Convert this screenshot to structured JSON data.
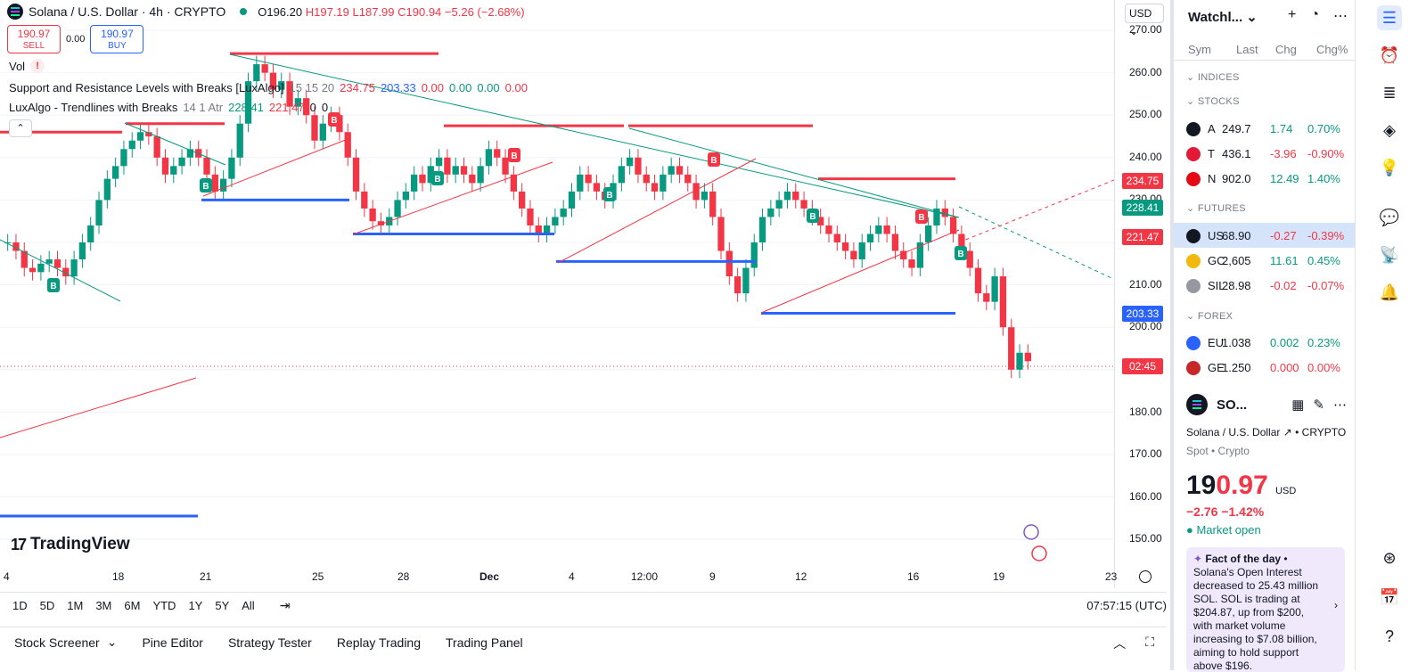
{
  "header": {
    "symbol": "Solana / U.S. Dollar · 4h · CRYPTO",
    "open": "O196.20",
    "high": "H197.19",
    "low": "L187.99",
    "close": "C190.94",
    "change": "−5.26 (−2.68%)"
  },
  "trade": {
    "sell_price": "190.97",
    "sell_label": "SELL",
    "spread": "0.00",
    "buy_price": "190.97",
    "buy_label": "BUY"
  },
  "indicators": {
    "vol": "Vol",
    "sr_name": "Support and Resistance Levels with Breaks [LuxAlgo]",
    "sr_params": "15 15 20",
    "sr_v1": "234.75",
    "sr_v2": "203.33",
    "sr_v3": "0.00",
    "sr_v4": "0.00",
    "sr_v5": "0.00",
    "sr_v6": "0.00",
    "tl_name": "LuxAlgo - Trendlines with Breaks",
    "tl_params": "14 1 Atr",
    "tl_v1": "228.41",
    "tl_v2": "221.47",
    "tl_v3": "0",
    "tl_v4": "0"
  },
  "price_scale": {
    "currency": "USD",
    "ticks": [
      "270.00",
      "260.00",
      "250.00",
      "240.00",
      "230.00",
      "220.00",
      "210.00",
      "200.00",
      "190.00",
      "180.00",
      "170.00",
      "160.00",
      "150.00"
    ],
    "tags": [
      {
        "value": "234.75",
        "color": "#f23645"
      },
      {
        "value": "228.41",
        "color": "#089981"
      },
      {
        "value": "221.47",
        "color": "#f23645"
      },
      {
        "value": "203.33",
        "color": "#2962ff"
      },
      {
        "value": "02:45",
        "color": "#f23645"
      }
    ]
  },
  "time_axis": [
    "4",
    "18",
    "21",
    "25",
    "28",
    "Dec",
    "4",
    "12:00",
    "9",
    "12",
    "16",
    "19",
    "23"
  ],
  "logo": "TradingView",
  "ranges": [
    "1D",
    "5D",
    "1M",
    "3M",
    "6M",
    "YTD",
    "1Y",
    "5Y",
    "All"
  ],
  "clock": "07:57:15 (UTC)",
  "footer_tabs": [
    "Stock Screener",
    "Pine Editor",
    "Strategy Tester",
    "Replay Trading",
    "Trading Panel"
  ],
  "watchlist": {
    "title": "Watchl...",
    "cols": {
      "sym": "Sym",
      "last": "Last",
      "chg": "Chg",
      "chgp": "Chg%"
    },
    "sections": [
      "INDICES",
      "STOCKS",
      "FUTURES",
      "FOREX"
    ],
    "rows": [
      {
        "sym": "A",
        "last": "249.7",
        "chg": "1.74",
        "chgp": "0.70%",
        "dir": "up",
        "logo": "#131722"
      },
      {
        "sym": "T",
        "last": "436.1",
        "chg": "-3.96",
        "chgp": "-0.90%",
        "dir": "dn",
        "logo": "#e31937"
      },
      {
        "sym": "N",
        "last": "902.0",
        "chg": "12.49",
        "chgp": "1.40%",
        "dir": "up",
        "logo": "#e50914"
      },
      {
        "sym": "US",
        "last": "68.90",
        "chg": "-0.27",
        "chgp": "-0.39%",
        "dir": "dn",
        "logo": "#131722"
      },
      {
        "sym": "GC",
        "last": "2,605",
        "chg": "11.61",
        "chgp": "0.45%",
        "dir": "up",
        "logo": "#f0b90b"
      },
      {
        "sym": "SIL",
        "last": "28.98",
        "chg": "-0.02",
        "chgp": "-0.07%",
        "dir": "dn",
        "logo": "#9598a1"
      },
      {
        "sym": "EU",
        "last": "1.038",
        "chg": "0.002",
        "chgp": "0.23%",
        "dir": "up",
        "logo": "#2962ff"
      },
      {
        "sym": "GE",
        "last": "1.250",
        "chg": "0.000",
        "chgp": "0.00%",
        "dir": "dn",
        "logo": "#c62828"
      }
    ]
  },
  "details": {
    "short": "SO...",
    "name": "Solana / U.S. Dollar",
    "exchange": "CRYPTO",
    "type": "Spot • Crypto",
    "price_main": "19",
    "price_red": "0.97",
    "currency": "USD",
    "change": "−2.76  −1.42%",
    "market": "● Market open",
    "fact_title": "Fact of the day",
    "fact_text": "Solana's Open Interest decreased to 25.43 million SOL. SOL is trading at $204.87, up from $200, with market volume increasing to $7.08 billion, aiming to hold support above $196."
  },
  "colors": {
    "up": "#089981",
    "down": "#f23645",
    "accent": "#2962ff"
  },
  "chart_data": {
    "type": "candlestick",
    "title": "Solana / U.S. Dollar · 4h · CRYPTO",
    "ylim": [
      145,
      275
    ],
    "support_levels": [
      221.47,
      203.33
    ],
    "resistance_levels": [
      234.75,
      250,
      247,
      265,
      225
    ],
    "last_close": 190.94
  }
}
